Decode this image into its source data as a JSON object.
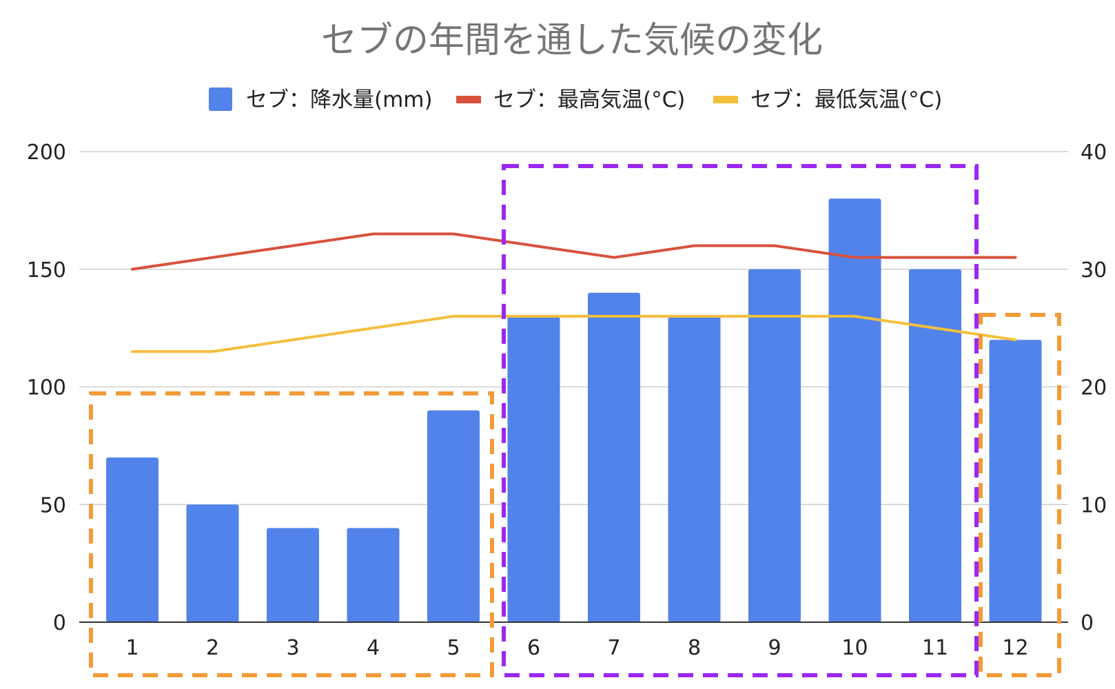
{
  "chart_data": {
    "type": "bar",
    "title": "セブの年間を通した気候の変化",
    "categories": [
      "1",
      "2",
      "3",
      "4",
      "5",
      "6",
      "7",
      "8",
      "9",
      "10",
      "11",
      "12"
    ],
    "series": [
      {
        "name": "セブ：降水量(mm)",
        "type": "bar",
        "axis": "left",
        "color": "#5283EB",
        "values": [
          70,
          50,
          40,
          40,
          90,
          130,
          140,
          130,
          150,
          180,
          150,
          120
        ]
      },
      {
        "name": "セブ：最高気温(°C)",
        "type": "line",
        "axis": "right",
        "color": "#D8513C",
        "values": [
          30,
          31,
          32,
          33,
          33,
          32,
          31,
          32,
          32,
          31,
          31,
          31
        ]
      },
      {
        "name": "セブ：最低気温(°C)",
        "type": "line",
        "axis": "right",
        "color": "#F3BF3C",
        "values": [
          23,
          23,
          24,
          25,
          26,
          26,
          26,
          26,
          26,
          26,
          25,
          24
        ]
      }
    ],
    "left_axis": {
      "ylim": [
        0,
        200
      ],
      "ticks": [
        "0",
        "50",
        "100",
        "150",
        "200"
      ]
    },
    "right_axis": {
      "ylim": [
        0,
        40
      ],
      "ticks": [
        "0",
        "10",
        "20",
        "30",
        "40"
      ]
    },
    "grid": true,
    "legend_position": "top",
    "annotations": [
      {
        "type": "dashed-box",
        "color": "#F29B38",
        "months": [
          "1",
          "2",
          "3",
          "4",
          "5"
        ]
      },
      {
        "type": "dashed-box",
        "color": "#9B27F0",
        "months": [
          "6",
          "7",
          "8",
          "9",
          "10",
          "11"
        ]
      },
      {
        "type": "dashed-box",
        "color": "#F29B38",
        "months": [
          "12"
        ]
      }
    ]
  }
}
